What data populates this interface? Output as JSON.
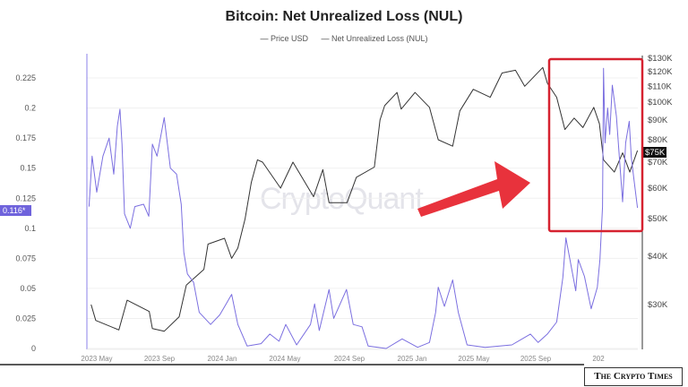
{
  "chart_data": {
    "type": "line",
    "title": "Bitcoin: Net Unrealized Loss (NUL)",
    "legend": {
      "placement": "top-center",
      "entries": [
        "Price USD",
        "Net Unrealized Loss (NUL)"
      ]
    },
    "watermark": "CryptoQuant",
    "grid": true,
    "x_ticks": [
      "2023 May",
      "2023 Sep",
      "2024 Jan",
      "2024 May",
      "2024 Sep",
      "2025 Jan",
      "2025 May",
      "2025 Sep",
      "202"
    ],
    "left_axis": {
      "ylim": [
        0,
        0.25
      ],
      "ticks": [
        "0",
        "0.025",
        "0.05",
        "0.075",
        "0.1",
        "0.125",
        "0.15",
        "0.175",
        "0.2",
        "0.225"
      ],
      "current_label": "0.116*"
    },
    "right_axis": {
      "scale": "log",
      "ylim": [
        23000,
        130000
      ],
      "ticks": [
        "$30K",
        "$40K",
        "$50K",
        "$60K",
        "$70K",
        "$80K",
        "$90K",
        "$100K",
        "$110K",
        "$120K",
        "$130K"
      ],
      "current_label": "$75K"
    },
    "series": [
      {
        "name": "Price USD",
        "axis": "right",
        "color": "#333333",
        "points": [
          [
            "2023-04-20",
            30000
          ],
          [
            "2023-04-29",
            27300
          ],
          [
            "2023-06-13",
            25800
          ],
          [
            "2023-06-29",
            30800
          ],
          [
            "2023-08-11",
            28800
          ],
          [
            "2023-08-17",
            26000
          ],
          [
            "2023-09-09",
            25600
          ],
          [
            "2023-10-08",
            27900
          ],
          [
            "2023-10-22",
            33700
          ],
          [
            "2023-11-25",
            37000
          ],
          [
            "2023-12-03",
            43000
          ],
          [
            "2024-01-04",
            44500
          ],
          [
            "2024-01-18",
            39500
          ],
          [
            "2024-01-30",
            42000
          ],
          [
            "2024-02-13",
            50000
          ],
          [
            "2024-02-25",
            62000
          ],
          [
            "2024-03-08",
            71000
          ],
          [
            "2024-03-18",
            70000
          ],
          [
            "2024-04-22",
            60000
          ],
          [
            "2024-05-16",
            70000
          ],
          [
            "2024-06-25",
            57000
          ],
          [
            "2024-07-13",
            67000
          ],
          [
            "2024-07-25",
            55000
          ],
          [
            "2024-08-29",
            55000
          ],
          [
            "2024-09-16",
            64000
          ],
          [
            "2024-10-21",
            68000
          ],
          [
            "2024-11-01",
            90000
          ],
          [
            "2024-11-10",
            98000
          ],
          [
            "2024-12-04",
            106000
          ],
          [
            "2024-12-12",
            96000
          ],
          [
            "2025-01-08",
            106000
          ],
          [
            "2025-02-05",
            97000
          ],
          [
            "2025-02-22",
            80000
          ],
          [
            "2025-03-22",
            77000
          ],
          [
            "2025-04-05",
            95000
          ],
          [
            "2025-05-01",
            108000
          ],
          [
            "2025-06-03",
            103000
          ],
          [
            "2025-06-26",
            119000
          ],
          [
            "2025-07-22",
            121000
          ],
          [
            "2025-08-09",
            110000
          ],
          [
            "2025-09-13",
            123000
          ],
          [
            "2025-09-22",
            112000
          ],
          [
            "2025-10-10",
            103000
          ],
          [
            "2025-10-26",
            85000
          ],
          [
            "2025-11-13",
            91000
          ],
          [
            "2025-11-30",
            86000
          ],
          [
            "2025-12-21",
            97000
          ],
          [
            "2026-01-01",
            88000
          ],
          [
            "2026-01-09",
            71000
          ],
          [
            "2026-01-30",
            66000
          ],
          [
            "2026-02-15",
            74000
          ],
          [
            "2026-03-01",
            66000
          ],
          [
            "2026-03-16",
            75000
          ]
        ]
      },
      {
        "name": "Net Unrealized Loss (NUL)",
        "axis": "left",
        "color": "#7b6fe0",
        "points": [
          [
            "2023-04-16",
            0.118
          ],
          [
            "2023-04-22",
            0.16
          ],
          [
            "2023-05-01",
            0.13
          ],
          [
            "2023-05-13",
            0.16
          ],
          [
            "2023-05-25",
            0.175
          ],
          [
            "2023-06-03",
            0.145
          ],
          [
            "2023-06-10",
            0.185
          ],
          [
            "2023-06-15",
            0.199
          ],
          [
            "2023-06-19",
            0.17
          ],
          [
            "2023-06-24",
            0.112
          ],
          [
            "2023-07-05",
            0.1
          ],
          [
            "2023-07-14",
            0.118
          ],
          [
            "2023-07-31",
            0.12
          ],
          [
            "2023-08-10",
            0.11
          ],
          [
            "2023-08-17",
            0.17
          ],
          [
            "2023-08-26",
            0.16
          ],
          [
            "2023-09-09",
            0.192
          ],
          [
            "2023-09-21",
            0.15
          ],
          [
            "2023-10-03",
            0.145
          ],
          [
            "2023-10-12",
            0.12
          ],
          [
            "2023-10-17",
            0.08
          ],
          [
            "2023-10-24",
            0.062
          ],
          [
            "2023-11-05",
            0.055
          ],
          [
            "2023-11-16",
            0.03
          ],
          [
            "2023-12-08",
            0.02
          ],
          [
            "2023-12-26",
            0.028
          ],
          [
            "2024-01-18",
            0.045
          ],
          [
            "2024-01-30",
            0.02
          ],
          [
            "2024-02-17",
            0.002
          ],
          [
            "2024-03-15",
            0.004
          ],
          [
            "2024-04-01",
            0.012
          ],
          [
            "2024-04-19",
            0.006
          ],
          [
            "2024-05-02",
            0.02
          ],
          [
            "2024-05-23",
            0.003
          ],
          [
            "2024-06-19",
            0.02
          ],
          [
            "2024-06-27",
            0.037
          ],
          [
            "2024-07-06",
            0.015
          ],
          [
            "2024-07-25",
            0.049
          ],
          [
            "2024-08-03",
            0.025
          ],
          [
            "2024-08-28",
            0.049
          ],
          [
            "2024-09-10",
            0.02
          ],
          [
            "2024-09-27",
            0.018
          ],
          [
            "2024-10-09",
            0.002
          ],
          [
            "2024-11-13",
            0.0
          ],
          [
            "2024-12-14",
            0.008
          ],
          [
            "2025-01-13",
            0.001
          ],
          [
            "2025-02-05",
            0.005
          ],
          [
            "2025-02-17",
            0.03
          ],
          [
            "2025-02-22",
            0.051
          ],
          [
            "2025-03-06",
            0.035
          ],
          [
            "2025-03-22",
            0.057
          ],
          [
            "2025-04-02",
            0.03
          ],
          [
            "2025-04-19",
            0.003
          ],
          [
            "2025-05-24",
            0.001
          ],
          [
            "2025-07-15",
            0.003
          ],
          [
            "2025-08-20",
            0.012
          ],
          [
            "2025-09-04",
            0.005
          ],
          [
            "2025-09-22",
            0.012
          ],
          [
            "2025-10-10",
            0.022
          ],
          [
            "2025-10-22",
            0.059
          ],
          [
            "2025-10-28",
            0.092
          ],
          [
            "2025-11-16",
            0.048
          ],
          [
            "2025-11-21",
            0.074
          ],
          [
            "2025-12-03",
            0.06
          ],
          [
            "2025-12-16",
            0.033
          ],
          [
            "2025-12-28",
            0.051
          ],
          [
            "2026-01-02",
            0.074
          ],
          [
            "2026-01-07",
            0.118
          ],
          [
            "2026-01-09",
            0.233
          ],
          [
            "2026-01-12",
            0.171
          ],
          [
            "2026-01-17",
            0.2
          ],
          [
            "2026-01-21",
            0.178
          ],
          [
            "2026-01-26",
            0.219
          ],
          [
            "2026-02-03",
            0.193
          ],
          [
            "2026-02-08",
            0.163
          ],
          [
            "2026-02-15",
            0.122
          ],
          [
            "2026-02-21",
            0.171
          ],
          [
            "2026-02-28",
            0.189
          ],
          [
            "2026-03-04",
            0.159
          ],
          [
            "2026-03-09",
            0.141
          ],
          [
            "2026-03-16",
            0.117
          ]
        ]
      }
    ],
    "annotations": {
      "highlight_box_color": "#d62230",
      "arrow_color": "#e8323c"
    }
  },
  "branding": {
    "logo_text": "The Crypto Times"
  }
}
